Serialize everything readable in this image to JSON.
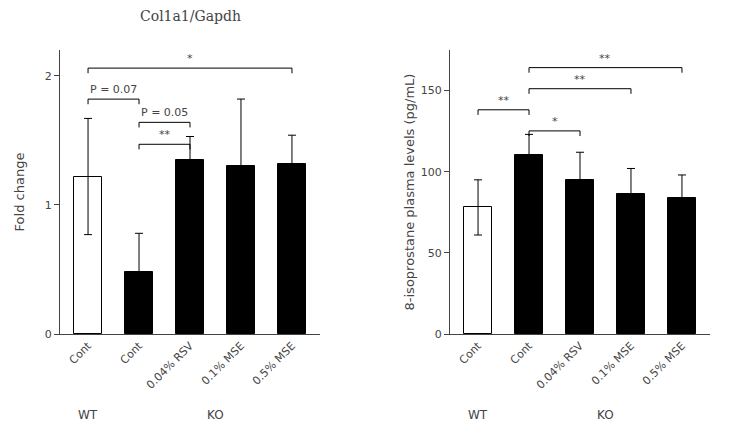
{
  "chart_data": [
    {
      "type": "bar",
      "title": "Col1a1/Gapdh",
      "ylabel": "Fold change",
      "categories": [
        "Cont",
        "Cont",
        "0.04% RSV",
        "0.1% MSE",
        "0.5% MSE"
      ],
      "values": [
        1.22,
        0.48,
        1.35,
        1.3,
        1.32
      ],
      "errors": [
        0.45,
        0.3,
        0.18,
        0.52,
        0.22
      ],
      "colors": [
        "white",
        "black",
        "black",
        "black",
        "black"
      ],
      "ylim": [
        0,
        2.2
      ],
      "yticks": [
        0,
        1,
        2
      ],
      "grid": false,
      "annotations": [
        {
          "text": "P = 0.07",
          "x1": 0,
          "x2": 1,
          "y": 1.78
        },
        {
          "text": "P = 0.05",
          "x1": 1,
          "x2": 2,
          "y": 1.6
        },
        {
          "text": "**",
          "x1": 1,
          "x2": 2,
          "y": 1.43
        },
        {
          "text": "*",
          "x1": 0,
          "x2": 4,
          "y": 2.02
        }
      ],
      "groups": [
        {
          "label": "WT",
          "from": 0,
          "to": 0
        },
        {
          "label": "KO",
          "from": 1,
          "to": 4
        }
      ]
    },
    {
      "type": "bar",
      "ylabel": "8-isoprostane plasma levels (pg/mL)",
      "categories": [
        "Cont",
        "Cont",
        "0.04% RSV",
        "0.1% MSE",
        "0.5% MSE"
      ],
      "values": [
        78,
        110,
        95,
        86,
        84
      ],
      "errors": [
        17,
        13,
        17,
        16,
        14
      ],
      "colors": [
        "white",
        "black",
        "black",
        "black",
        "black"
      ],
      "ylim": [
        0,
        175
      ],
      "yticks": [
        0,
        50,
        100,
        150
      ],
      "grid": false,
      "annotations": [
        {
          "text": "**",
          "x1": 0,
          "x2": 1,
          "y": 135
        },
        {
          "text": "*",
          "x1": 1,
          "x2": 2,
          "y": 122
        },
        {
          "text": "**",
          "x1": 1,
          "x2": 3,
          "y": 148
        },
        {
          "text": "**",
          "x1": 1,
          "x2": 4,
          "y": 161
        }
      ],
      "groups": [
        {
          "label": "WT",
          "from": 0,
          "to": 0
        },
        {
          "label": "KO",
          "from": 1,
          "to": 4
        }
      ]
    }
  ]
}
